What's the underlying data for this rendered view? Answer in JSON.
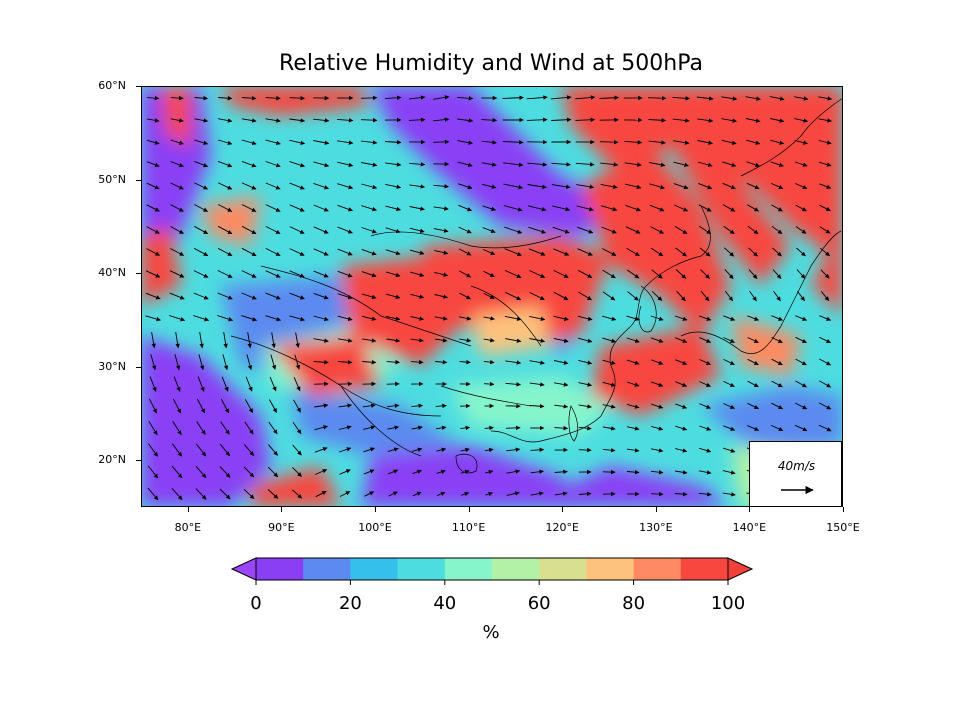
{
  "title": "Relative Humidity and Wind at 500hPa",
  "map": {
    "lon_range": [
      75,
      150
    ],
    "lat_range": [
      15,
      60
    ],
    "field": "relative_humidity",
    "vectors": "wind"
  },
  "lat_labels": [
    "60°N",
    "50°N",
    "40°N",
    "30°N",
    "20°N"
  ],
  "lat_values": [
    60,
    50,
    40,
    30,
    20
  ],
  "lon_labels": [
    "80°E",
    "90°E",
    "100°E",
    "110°E",
    "120°E",
    "130°E",
    "140°E",
    "150°E"
  ],
  "lon_values": [
    80,
    90,
    100,
    110,
    120,
    130,
    140,
    150
  ],
  "reference_vector": {
    "label": "40m/s",
    "speed": 40
  },
  "colorbar": {
    "unit": "%",
    "tick_labels": [
      "0",
      "20",
      "40",
      "60",
      "80",
      "100"
    ],
    "ticks": [
      0,
      20,
      40,
      60,
      80,
      100
    ],
    "levels": [
      0,
      10,
      20,
      30,
      40,
      50,
      60,
      70,
      80,
      90,
      100
    ],
    "colors": [
      "#8a3ff5",
      "#5b8af0",
      "#35c0ec",
      "#4ddde0",
      "#86f5cc",
      "#b3f2a6",
      "#d8e090",
      "#fdc27e",
      "#fd8a62",
      "#f8473f"
    ],
    "under_color": "#9a45f7",
    "over_color": "#f3403a"
  }
}
